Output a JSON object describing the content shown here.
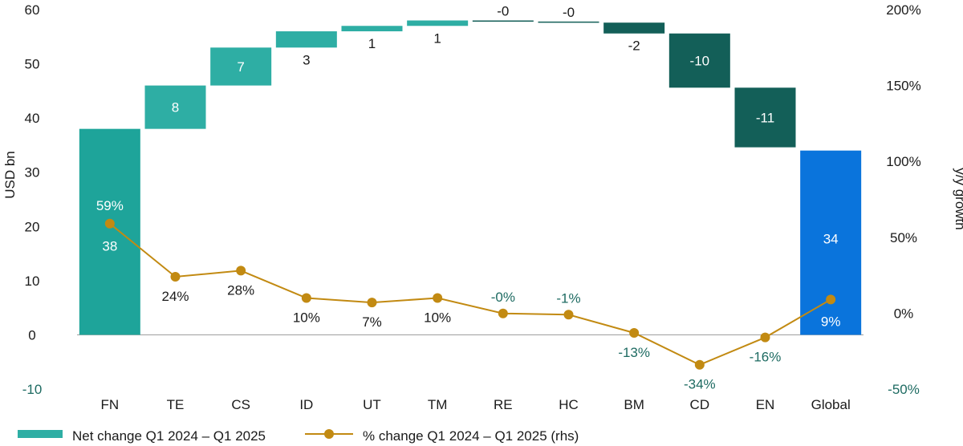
{
  "chart_data": {
    "type": "waterfall_bar_with_line",
    "categories": [
      "FN",
      "TE",
      "CS",
      "ID",
      "UT",
      "TM",
      "RE",
      "HC",
      "BM",
      "CD",
      "EN",
      "Global"
    ],
    "bar_values": [
      38,
      8,
      7,
      3,
      1,
      1,
      -0.2,
      -0.2,
      -2,
      -10,
      -11,
      34
    ],
    "bar_labels": [
      "38",
      "8",
      "7",
      "3",
      "1",
      "1",
      "-0",
      "-0",
      "-2",
      "-10",
      "-11",
      "34"
    ],
    "pct_values": [
      59,
      24,
      28,
      10,
      7,
      10,
      -0.2,
      -1,
      -13,
      -34,
      -16,
      9
    ],
    "pct_labels": [
      "59%",
      "24%",
      "28%",
      "10%",
      "7%",
      "10%",
      "-0%",
      "-1%",
      "-13%",
      "-34%",
      "-16%",
      "9%"
    ],
    "left_axis": {
      "title": "USD bn",
      "ylim": [
        -10,
        60
      ],
      "ticks": [
        "-10",
        "0",
        "10",
        "20",
        "30",
        "40",
        "50",
        "60"
      ]
    },
    "right_axis": {
      "title": "y/y growth",
      "ylim": [
        -50,
        200
      ],
      "ticks": [
        "-50%",
        "0%",
        "50%",
        "100%",
        "150%",
        "200%"
      ]
    },
    "legend": [
      {
        "name": "Net change Q1 2024 – Q1 2025",
        "kind": "bar"
      },
      {
        "name": "% change Q1 2024 – Q1 2025 (rhs)",
        "kind": "line"
      }
    ],
    "colors": {
      "bar_first": "#1ea49a",
      "bar_positive": "#2eaea4",
      "bar_negative": "#135f58",
      "bar_total": "#0a74dc",
      "line": "#c28a12",
      "neg_tick": "#1e6b62"
    }
  }
}
